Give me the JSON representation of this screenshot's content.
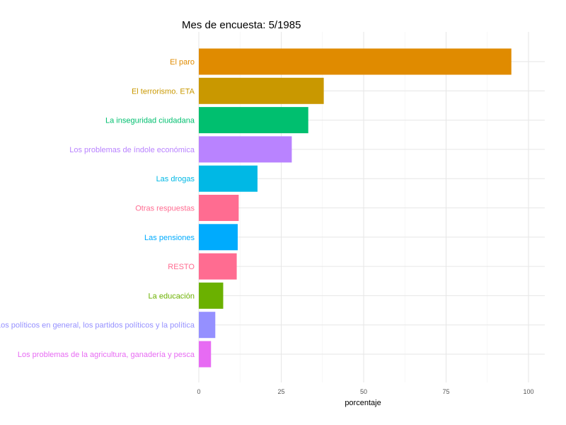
{
  "chart_data": {
    "type": "bar",
    "orientation": "horizontal",
    "title": "Mes de encuesta: 5/1985",
    "xlabel": "porcentaje",
    "ylabel": "",
    "xlim": [
      0,
      105
    ],
    "xticks": [
      0,
      25,
      50,
      75,
      100
    ],
    "grid": true,
    "legend": "none",
    "categories": [
      "El paro",
      "El terrorismo. ETA",
      "La inseguridad ciudadana",
      "Los problemas de índole económica",
      "Las drogas",
      "Otras respuestas",
      "Las pensiones",
      "RESTO",
      "La educación",
      "Los políticos en general, los partidos políticos y la política",
      "Los problemas de la agricultura, ganadería y pesca"
    ],
    "values": [
      94.8,
      37.9,
      33.2,
      28.2,
      17.8,
      12.1,
      11.8,
      11.5,
      7.4,
      5.0,
      3.7
    ],
    "colors": [
      "#E08B00",
      "#C99800",
      "#00BF6F",
      "#B983FF",
      "#00B8E5",
      "#FF6C91",
      "#00ABFD",
      "#FF6C91",
      "#6BB100",
      "#9590FF",
      "#E76BF3"
    ]
  }
}
